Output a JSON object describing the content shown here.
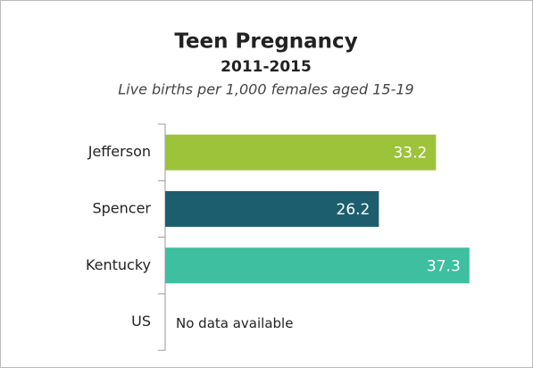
{
  "chart_data": {
    "type": "bar",
    "orientation": "horizontal",
    "title": "Teen Pregnancy",
    "subtitle": "2011-2015",
    "description": "Live births per 1,000 females aged 15-19",
    "categories": [
      "Jefferson",
      "Spencer",
      "Kentucky",
      "US"
    ],
    "values": [
      33.2,
      26.2,
      37.3,
      null
    ],
    "colors": [
      "#9dc33b",
      "#1d5e6e",
      "#3dbfa0",
      "#888888"
    ],
    "annotation": "No data available",
    "xlim": [
      0,
      44
    ]
  }
}
